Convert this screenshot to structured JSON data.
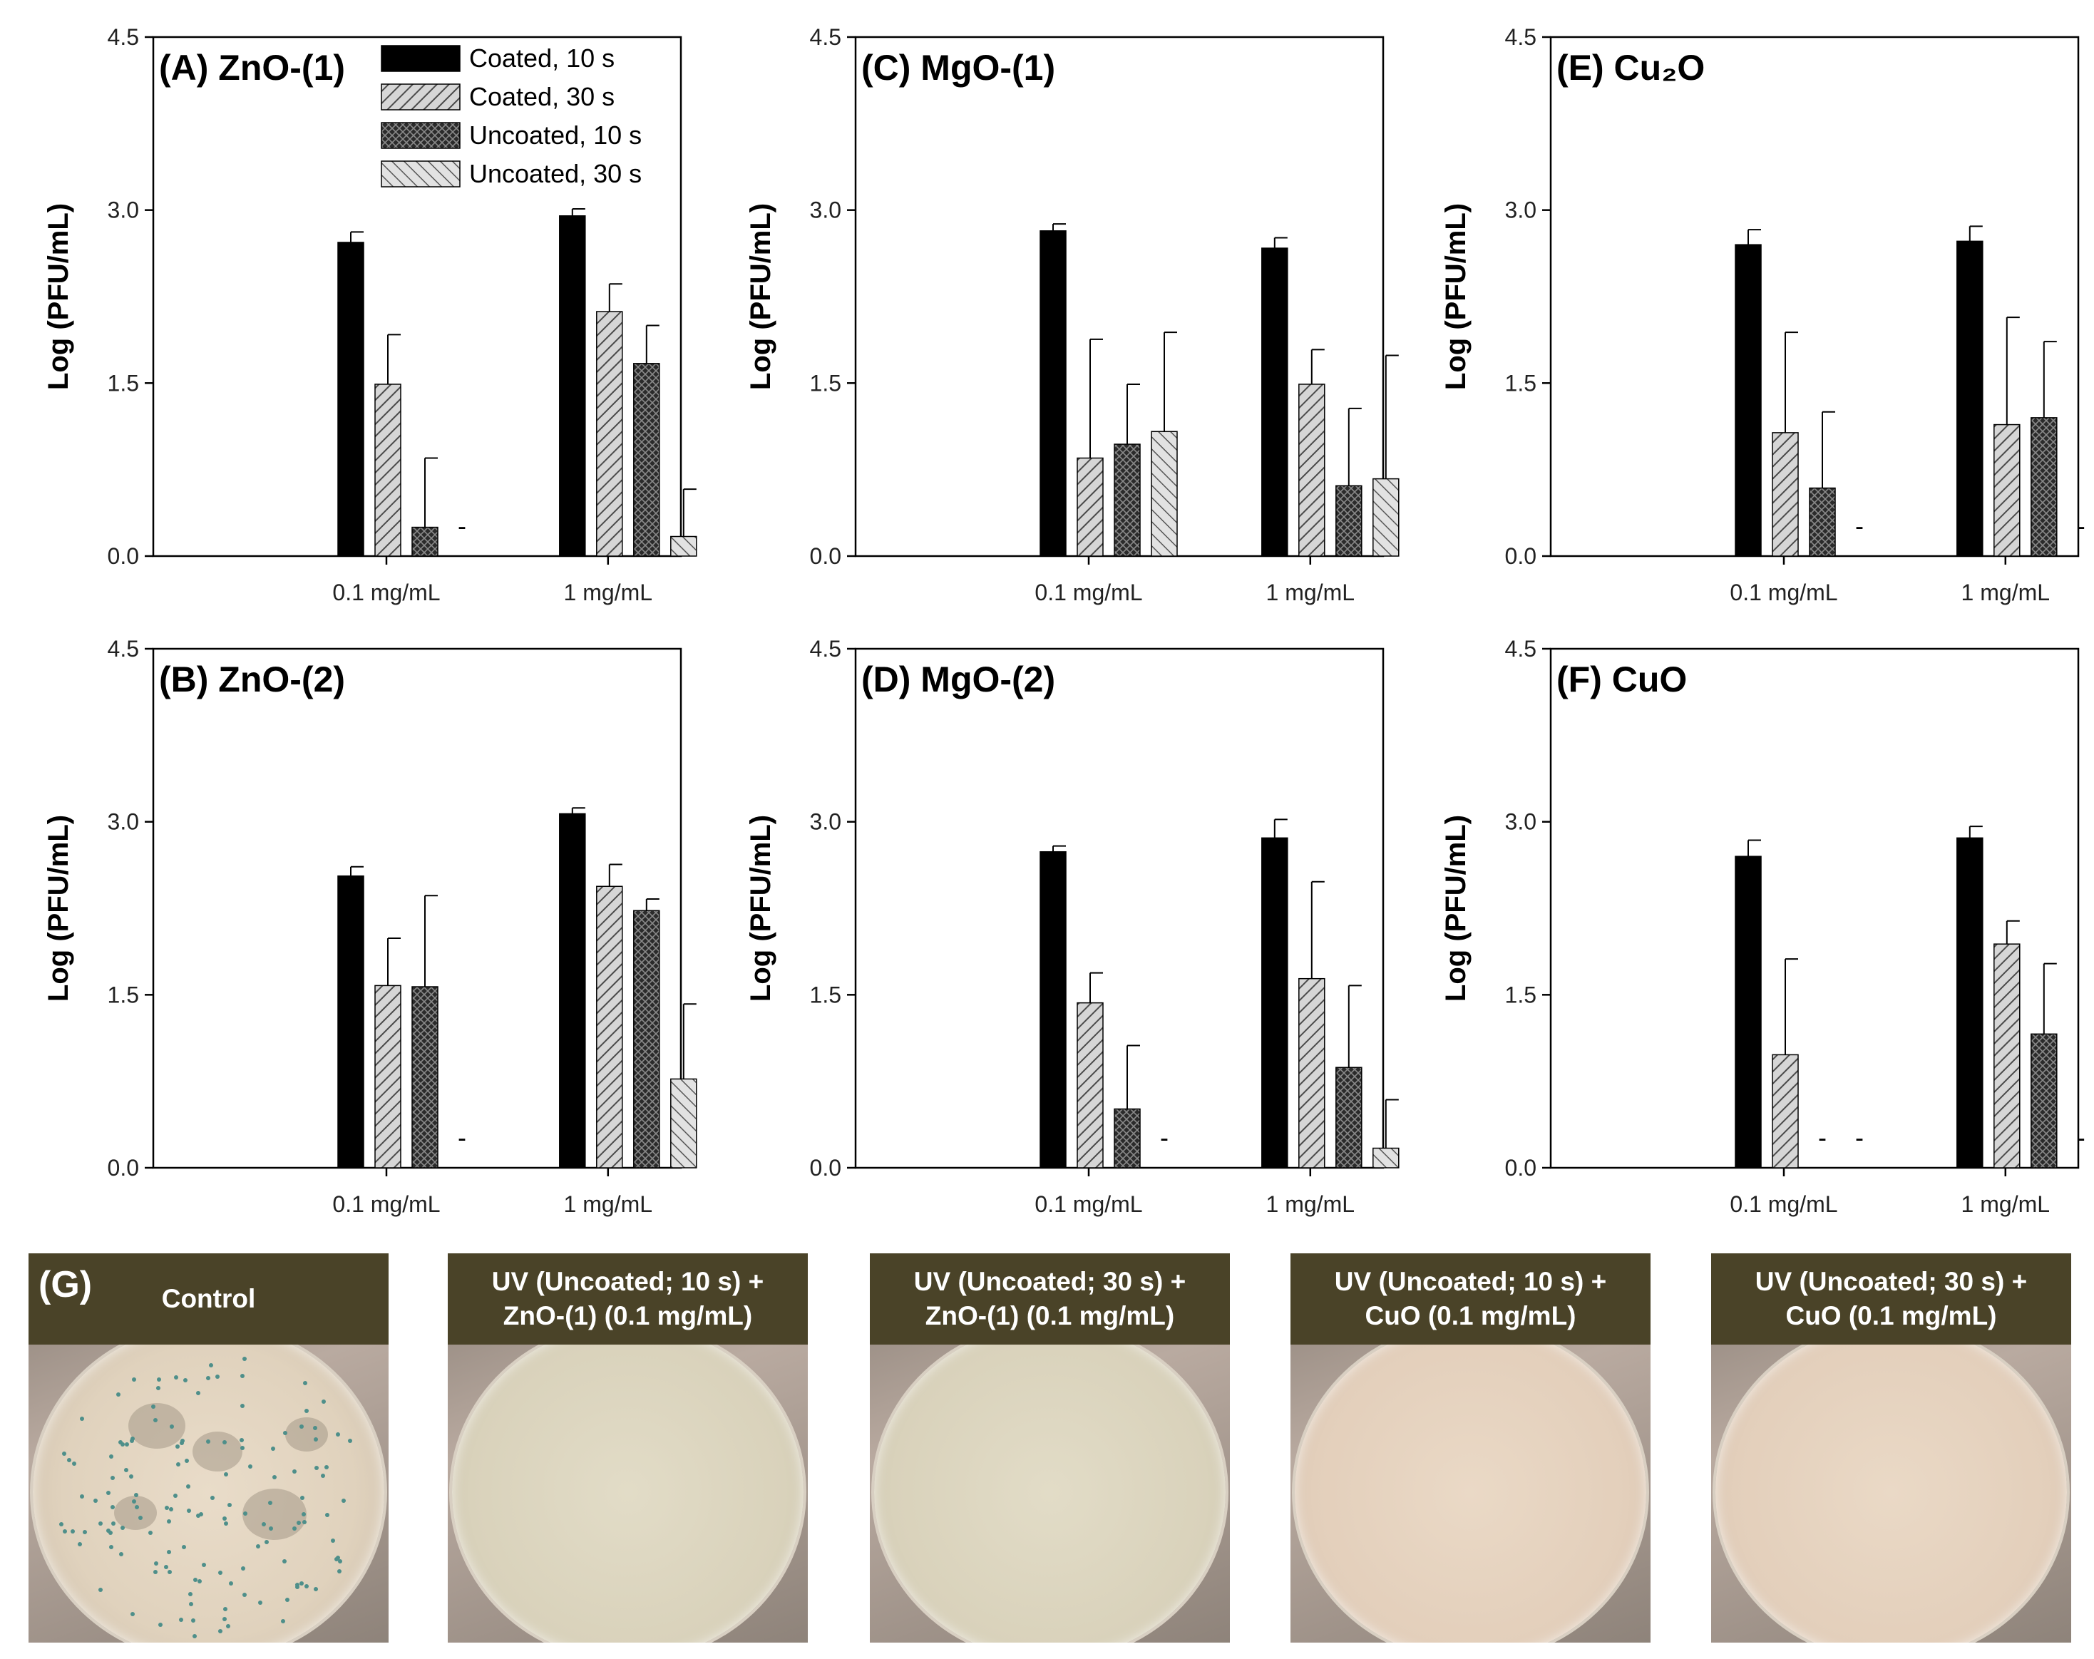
{
  "legend": {
    "entries": [
      {
        "label": "Coated, 10 s",
        "pattern": "solid"
      },
      {
        "label": "Coated, 30 s",
        "pattern": "diag"
      },
      {
        "label": "Uncoated, 10 s",
        "pattern": "cross"
      },
      {
        "label": "Uncoated, 30 s",
        "pattern": "diagrev"
      }
    ],
    "placement": "top-right of panel A"
  },
  "chart_data": [
    {
      "id": "A",
      "type": "bar",
      "title": "(A) ZnO-(1)",
      "ylabel": "Log (PFU/mL)",
      "ylim": [
        0,
        4.5
      ],
      "yticks": [
        "0.0",
        "1.5",
        "3.0",
        "4.5"
      ],
      "categories": [
        "0.1 mg/mL",
        "1 mg/mL"
      ],
      "series": [
        {
          "name": "Coated, 10 s",
          "values": [
            2.72,
            2.95
          ],
          "errors": [
            0.09,
            0.06
          ]
        },
        {
          "name": "Coated, 30 s",
          "values": [
            1.49,
            2.12
          ],
          "errors": [
            0.43,
            0.24
          ]
        },
        {
          "name": "Uncoated, 10 s",
          "values": [
            0.25,
            1.67
          ],
          "errors": [
            0.6,
            0.33
          ]
        },
        {
          "name": "Uncoated, 30 s",
          "values": [
            null,
            0.17
          ],
          "errors": [
            null,
            0.41
          ]
        }
      ]
    },
    {
      "id": "C",
      "type": "bar",
      "title": "(C) MgO-(1)",
      "ylabel": "Log (PFU/mL)",
      "ylim": [
        0,
        4.5
      ],
      "yticks": [
        "0.0",
        "1.5",
        "3.0",
        "4.5"
      ],
      "categories": [
        "0.1 mg/mL",
        "1 mg/mL"
      ],
      "series": [
        {
          "name": "Coated, 10 s",
          "values": [
            2.82,
            2.67
          ],
          "errors": [
            0.06,
            0.09
          ]
        },
        {
          "name": "Coated, 30 s",
          "values": [
            0.85,
            1.49
          ],
          "errors": [
            1.03,
            0.3
          ]
        },
        {
          "name": "Uncoated, 10 s",
          "values": [
            0.97,
            0.61
          ],
          "errors": [
            0.52,
            0.67
          ]
        },
        {
          "name": "Uncoated, 30 s",
          "values": [
            1.08,
            0.67
          ],
          "errors": [
            0.86,
            1.07
          ]
        }
      ]
    },
    {
      "id": "E",
      "type": "bar",
      "title": "(E) Cu₂O",
      "ylabel": "Log (PFU/mL)",
      "ylim": [
        0,
        4.5
      ],
      "yticks": [
        "0.0",
        "1.5",
        "3.0",
        "4.5"
      ],
      "categories": [
        "0.1 mg/mL",
        "1 mg/mL"
      ],
      "series": [
        {
          "name": "Coated, 10 s",
          "values": [
            2.7,
            2.73
          ],
          "errors": [
            0.13,
            0.13
          ]
        },
        {
          "name": "Coated, 30 s",
          "values": [
            1.07,
            1.14
          ],
          "errors": [
            0.87,
            0.93
          ]
        },
        {
          "name": "Uncoated, 10 s",
          "values": [
            0.59,
            1.2
          ],
          "errors": [
            0.66,
            0.66
          ]
        },
        {
          "name": "Uncoated, 30 s",
          "values": [
            null,
            null
          ],
          "errors": [
            null,
            null
          ]
        }
      ]
    },
    {
      "id": "B",
      "type": "bar",
      "title": "(B) ZnO-(2)",
      "ylabel": "Log (PFU/mL)",
      "ylim": [
        0,
        4.5
      ],
      "yticks": [
        "0.0",
        "1.5",
        "3.0",
        "4.5"
      ],
      "categories": [
        "0.1 mg/mL",
        "1 mg/mL"
      ],
      "series": [
        {
          "name": "Coated, 10 s",
          "values": [
            2.53,
            3.07
          ],
          "errors": [
            0.08,
            0.05
          ]
        },
        {
          "name": "Coated, 30 s",
          "values": [
            1.58,
            2.44
          ],
          "errors": [
            0.41,
            0.19
          ]
        },
        {
          "name": "Uncoated, 10 s",
          "values": [
            1.57,
            2.23
          ],
          "errors": [
            0.79,
            0.1
          ]
        },
        {
          "name": "Uncoated, 30 s",
          "values": [
            null,
            0.77
          ],
          "errors": [
            null,
            0.65
          ]
        }
      ]
    },
    {
      "id": "D",
      "type": "bar",
      "title": "(D) MgO-(2)",
      "ylabel": "Log (PFU/mL)",
      "ylim": [
        0,
        4.5
      ],
      "yticks": [
        "0.0",
        "1.5",
        "3.0",
        "4.5"
      ],
      "categories": [
        "0.1 mg/mL",
        "1 mg/mL"
      ],
      "series": [
        {
          "name": "Coated, 10 s",
          "values": [
            2.74,
            2.86
          ],
          "errors": [
            0.05,
            0.16
          ]
        },
        {
          "name": "Coated, 30 s",
          "values": [
            1.43,
            1.64
          ],
          "errors": [
            0.26,
            0.84
          ]
        },
        {
          "name": "Uncoated, 10 s",
          "values": [
            0.51,
            0.87
          ],
          "errors": [
            0.55,
            0.71
          ]
        },
        {
          "name": "Uncoated, 30 s",
          "values": [
            null,
            0.17
          ],
          "errors": [
            null,
            0.42
          ]
        }
      ]
    },
    {
      "id": "F",
      "type": "bar",
      "title": "(F) CuO",
      "ylabel": "Log (PFU/mL)",
      "ylim": [
        0,
        4.5
      ],
      "yticks": [
        "0.0",
        "1.5",
        "3.0",
        "4.5"
      ],
      "categories": [
        "0.1 mg/mL",
        "1 mg/mL"
      ],
      "series": [
        {
          "name": "Coated, 10 s",
          "values": [
            2.7,
            2.86
          ],
          "errors": [
            0.14,
            0.1
          ]
        },
        {
          "name": "Coated, 30 s",
          "values": [
            0.98,
            1.94
          ],
          "errors": [
            0.83,
            0.2
          ]
        },
        {
          "name": "Uncoated, 10 s",
          "values": [
            null,
            1.16
          ],
          "errors": [
            null,
            0.61
          ]
        },
        {
          "name": "Uncoated, 30 s",
          "values": [
            null,
            null
          ],
          "errors": [
            null,
            null
          ]
        }
      ]
    }
  ],
  "missing_marker": "-",
  "photos": {
    "panel_label": "(G)",
    "plates": [
      {
        "label": "Control",
        "plaques": true
      },
      {
        "label": "UV (Uncoated; 10 s) +\nZnO-(1) (0.1 mg/mL)",
        "plaques": false
      },
      {
        "label": "UV (Uncoated; 30 s) +\nZnO-(1) (0.1 mg/mL)",
        "plaques": false
      },
      {
        "label": "UV (Uncoated; 10 s) +\nCuO (0.1 mg/mL)",
        "plaques": false
      },
      {
        "label": "UV (Uncoated; 30 s) +\nCuO (0.1 mg/mL)",
        "plaques": false
      }
    ]
  }
}
